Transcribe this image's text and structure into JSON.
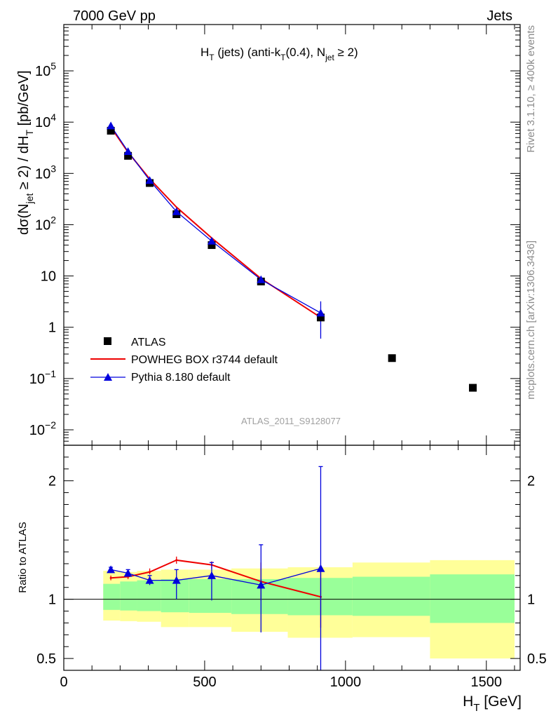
{
  "header": {
    "left": "7000 GeV pp",
    "right": "Jets",
    "side_rivet": "Rivet 3.1.10, ≥ 400k events",
    "side_mcplots": "mcplots.cern.ch [arXiv:1306.3436]"
  },
  "chart_data": {
    "type": "scatter",
    "title": "H_T (jets) (anti-k_T(0.4), N_jet ≥ 2)",
    "xlabel": "H_T [GeV]",
    "ylabel": "dσ(N_jet ≥ 2) / dH_T [pb/GeV]",
    "watermark": "ATLAS_2011_S9128077",
    "xlim": [
      0,
      1620
    ],
    "ylim": [
      0.005,
      800000
    ],
    "yscale": "log",
    "x_ticks": [
      "0",
      "500",
      "1000",
      "1500"
    ],
    "y_ticks": [
      "10^-2",
      "10^-1",
      "1",
      "10",
      "10^2",
      "10^3",
      "10^4",
      "10^5"
    ],
    "legend": [
      "ATLAS",
      "POWHEG BOX r3744 default",
      "Pythia 8.180 default"
    ],
    "atlas": [
      {
        "x": 167,
        "y": 6800
      },
      {
        "x": 228,
        "y": 2200
      },
      {
        "x": 305,
        "y": 650
      },
      {
        "x": 400,
        "y": 160
      },
      {
        "x": 525,
        "y": 40
      },
      {
        "x": 700,
        "y": 7.8
      },
      {
        "x": 912,
        "y": 1.55
      },
      {
        "x": 1165,
        "y": 0.25
      },
      {
        "x": 1452,
        "y": 0.066
      }
    ],
    "powheg": [
      {
        "x": 167,
        "y": 8000
      },
      {
        "x": 228,
        "y": 2600
      },
      {
        "x": 305,
        "y": 780
      },
      {
        "x": 400,
        "y": 220
      },
      {
        "x": 525,
        "y": 55
      },
      {
        "x": 700,
        "y": 8.9
      },
      {
        "x": 912,
        "y": 1.55
      }
    ],
    "pythia": [
      {
        "x": 167,
        "y": 8500
      },
      {
        "x": 228,
        "y": 2680
      },
      {
        "x": 305,
        "y": 730
      },
      {
        "x": 400,
        "y": 180
      },
      {
        "x": 525,
        "y": 48
      },
      {
        "x": 700,
        "y": 8.5
      },
      {
        "x": 912,
        "y": 1.9,
        "err": [
          0.6,
          3.2
        ]
      }
    ],
    "ratio": {
      "ylabel": "Ratio to ATLAS",
      "ylim": [
        0.4,
        2.3
      ],
      "y_ticks": [
        "0.5",
        "1",
        "2"
      ],
      "bands": [
        {
          "x0": 140,
          "x1": 200,
          "g": [
            0.91,
            1.13
          ],
          "y": [
            0.82,
            1.24
          ]
        },
        {
          "x0": 200,
          "x1": 260,
          "g": [
            0.905,
            1.15
          ],
          "y": [
            0.815,
            1.23
          ]
        },
        {
          "x0": 260,
          "x1": 345,
          "g": [
            0.9,
            1.16
          ],
          "y": [
            0.81,
            1.24
          ]
        },
        {
          "x0": 345,
          "x1": 445,
          "g": [
            0.89,
            1.17
          ],
          "y": [
            0.765,
            1.25
          ]
        },
        {
          "x0": 445,
          "x1": 595,
          "g": [
            0.885,
            1.17
          ],
          "y": [
            0.765,
            1.25
          ]
        },
        {
          "x0": 595,
          "x1": 795,
          "g": [
            0.875,
            1.17
          ],
          "y": [
            0.725,
            1.26
          ]
        },
        {
          "x0": 795,
          "x1": 1025,
          "g": [
            0.865,
            1.18
          ],
          "y": [
            0.675,
            1.27
          ]
        },
        {
          "x0": 1025,
          "x1": 1300,
          "g": [
            0.86,
            1.19
          ],
          "y": [
            0.68,
            1.31
          ]
        },
        {
          "x0": 1300,
          "x1": 1600,
          "g": [
            0.8,
            1.21
          ],
          "y": [
            0.5,
            1.33
          ]
        }
      ],
      "powheg": [
        {
          "x": 167,
          "y": 1.18,
          "err": [
            1.16,
            1.2
          ]
        },
        {
          "x": 228,
          "y": 1.19,
          "err": [
            1.17,
            1.21
          ]
        },
        {
          "x": 305,
          "y": 1.23,
          "err": [
            1.21,
            1.26
          ]
        },
        {
          "x": 400,
          "y": 1.33,
          "err": [
            1.3,
            1.36
          ]
        },
        {
          "x": 525,
          "y": 1.29,
          "err": [
            1.26,
            1.32
          ]
        },
        {
          "x": 700,
          "y": 1.15,
          "err": [
            0.99,
            1.31
          ]
        },
        {
          "x": 912,
          "y": 1.02,
          "err": [
            0.76,
            1.28
          ]
        }
      ],
      "pythia": [
        {
          "x": 167,
          "y": 1.25,
          "err": [
            1.23,
            1.27
          ]
        },
        {
          "x": 228,
          "y": 1.22,
          "err": [
            1.19,
            1.25
          ]
        },
        {
          "x": 305,
          "y": 1.16,
          "err": [
            1.12,
            1.2
          ]
        },
        {
          "x": 400,
          "y": 1.16,
          "err": [
            1.0,
            1.25
          ]
        },
        {
          "x": 525,
          "y": 1.2,
          "err": [
            0.99,
            1.31
          ]
        },
        {
          "x": 700,
          "y": 1.12,
          "err": [
            0.72,
            1.46
          ]
        },
        {
          "x": 912,
          "y": 1.26,
          "err": [
            0.38,
            2.12
          ]
        }
      ]
    }
  },
  "colors": {
    "atlas": "#000000",
    "powheg": "#ee0000",
    "pythia": "#0000dd",
    "band_green": "#99ff99",
    "band_yellow": "#ffff99"
  }
}
